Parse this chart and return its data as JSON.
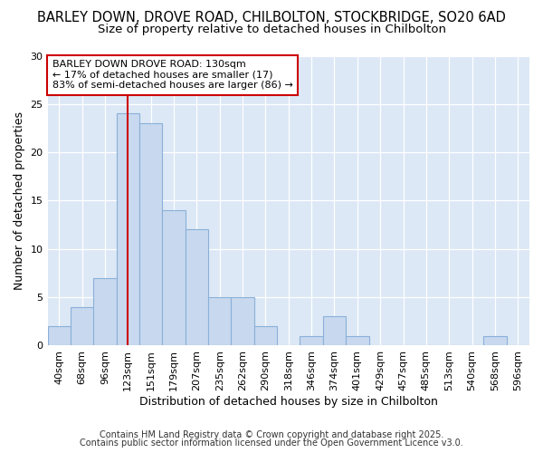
{
  "title_line1": "BARLEY DOWN, DROVE ROAD, CHILBOLTON, STOCKBRIDGE, SO20 6AD",
  "title_line2": "Size of property relative to detached houses in Chilbolton",
  "xlabel": "Distribution of detached houses by size in Chilbolton",
  "ylabel": "Number of detached properties",
  "categories": [
    "40sqm",
    "68sqm",
    "96sqm",
    "123sqm",
    "151sqm",
    "179sqm",
    "207sqm",
    "235sqm",
    "262sqm",
    "290sqm",
    "318sqm",
    "346sqm",
    "374sqm",
    "401sqm",
    "429sqm",
    "457sqm",
    "485sqm",
    "513sqm",
    "540sqm",
    "568sqm",
    "596sqm"
  ],
  "values": [
    2,
    4,
    7,
    24,
    23,
    14,
    12,
    5,
    5,
    2,
    0,
    1,
    3,
    1,
    0,
    0,
    0,
    0,
    0,
    1,
    0
  ],
  "bar_color": "#c8d9ef",
  "bar_edge_color": "#8ab0d8",
  "red_line_color": "#cc0000",
  "annotation_title": "BARLEY DOWN DROVE ROAD: 130sqm",
  "annotation_line2": "← 17% of detached houses are smaller (17)",
  "annotation_line3": "83% of semi-detached houses are larger (86) →",
  "annotation_box_color": "#ffffff",
  "annotation_box_edge": "#cc0000",
  "ylim": [
    0,
    30
  ],
  "yticks": [
    0,
    5,
    10,
    15,
    20,
    25,
    30
  ],
  "footer_line1": "Contains HM Land Registry data © Crown copyright and database right 2025.",
  "footer_line2": "Contains public sector information licensed under the Open Government Licence v3.0.",
  "fig_background_color": "#ffffff",
  "plot_background_color": "#dce8f5",
  "title_fontsize": 10.5,
  "subtitle_fontsize": 9.5,
  "axis_label_fontsize": 9,
  "tick_fontsize": 8,
  "annotation_fontsize": 8,
  "footer_fontsize": 7
}
